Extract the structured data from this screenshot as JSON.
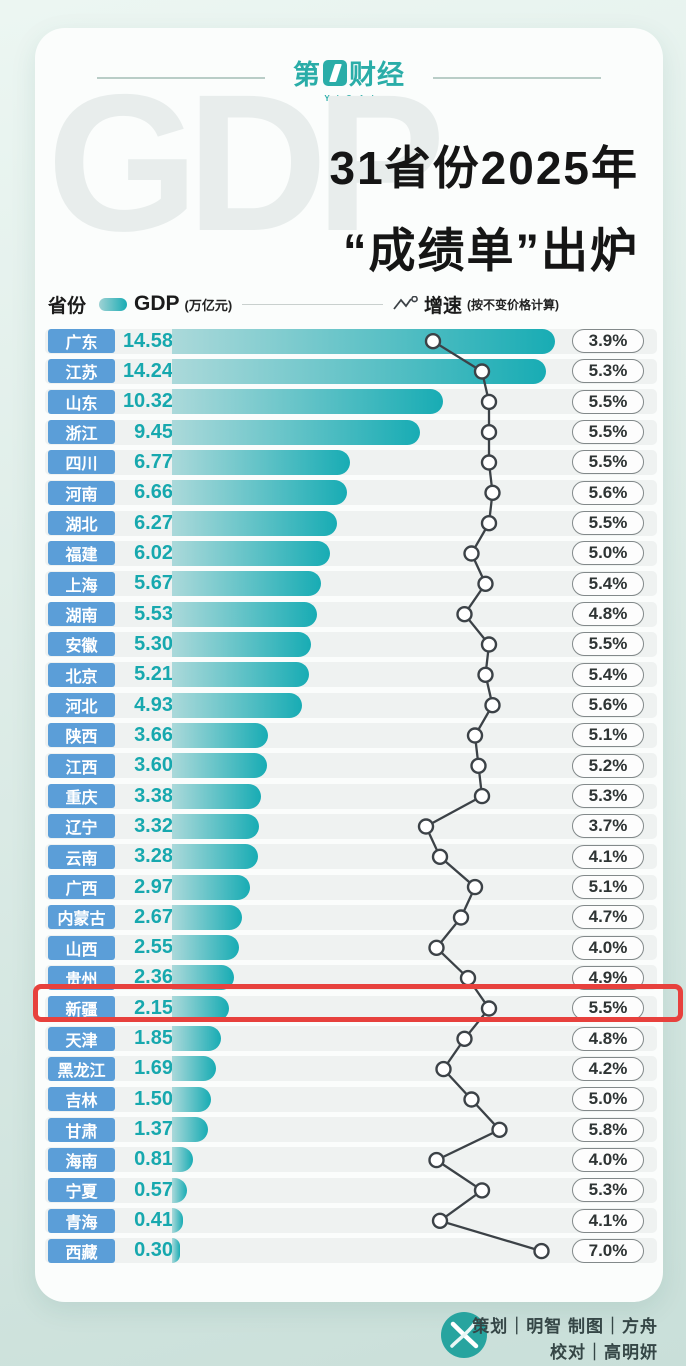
{
  "brand": {
    "logo_prefix": "第",
    "logo_box_digit": "1",
    "logo_suffix": "财经",
    "logo_sub": "YICAI"
  },
  "title": {
    "watermark": "GDP",
    "line1": "31省份2025年",
    "line2": "“成绩单”出炉"
  },
  "legend": {
    "province_label": "省份",
    "gdp_label": "GDP",
    "gdp_unit": "(万亿元)",
    "growth_label": "增速",
    "growth_note": "(按不变价格计算)"
  },
  "chart_data": {
    "type": "bar",
    "title": "31省份2025年“成绩单”出炉",
    "categories": [
      "广东",
      "江苏",
      "山东",
      "浙江",
      "四川",
      "河南",
      "湖北",
      "福建",
      "上海",
      "湖南",
      "安徽",
      "北京",
      "河北",
      "陕西",
      "江西",
      "重庆",
      "辽宁",
      "云南",
      "广西",
      "内蒙古",
      "山西",
      "贵州",
      "新疆",
      "天津",
      "黑龙江",
      "吉林",
      "甘肃",
      "海南",
      "宁夏",
      "青海",
      "西藏"
    ],
    "series": [
      {
        "name": "GDP（万亿元）",
        "type": "bar",
        "values": [
          14.58,
          14.24,
          10.32,
          9.45,
          6.77,
          6.66,
          6.27,
          6.02,
          5.67,
          5.53,
          5.3,
          5.21,
          4.93,
          3.66,
          3.6,
          3.38,
          3.32,
          3.28,
          2.97,
          2.67,
          2.55,
          2.36,
          2.15,
          1.85,
          1.69,
          1.5,
          1.37,
          0.81,
          0.57,
          0.41,
          0.3
        ]
      },
      {
        "name": "增速（按不变价格计算，%）",
        "type": "line",
        "values": [
          3.9,
          5.3,
          5.5,
          5.5,
          5.5,
          5.6,
          5.5,
          5.0,
          5.4,
          4.8,
          5.5,
          5.4,
          5.6,
          5.1,
          5.2,
          5.3,
          3.7,
          4.1,
          5.1,
          4.7,
          4.0,
          4.9,
          5.5,
          4.8,
          4.2,
          5.0,
          5.8,
          4.0,
          5.3,
          4.1,
          7.0
        ]
      }
    ],
    "highlighted_category": "新疆",
    "highlight_note": "red box around 新疆 row (GDP 2.15, 增速 5.5%)",
    "xlim_gdp": [
      0,
      15
    ],
    "legend_position": "top",
    "grid": false
  },
  "colors": {
    "bar_gradient_start": "#abd9da",
    "bar_gradient_end": "#18acb4",
    "province_chip": "#5b9ed8",
    "gdp_value_text": "#17a8ae",
    "brand_teal": "#2aada8",
    "growth_line": "#3c4247",
    "highlight_red": "#e7413d"
  },
  "footer": {
    "credits_line1": "策划｜明智  制图｜方舟",
    "credits_line2": "校对｜高明妍"
  }
}
